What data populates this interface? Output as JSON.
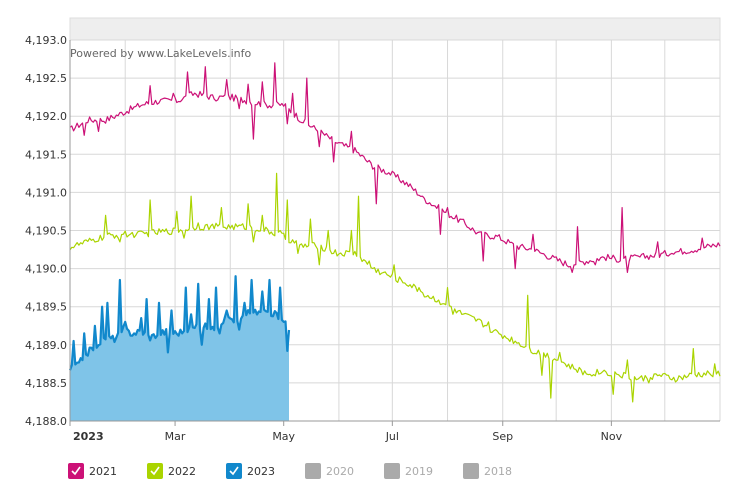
{
  "chart_data": {
    "type": "area",
    "watermark": "Powered by www.LakeLevels.info",
    "ylim": [
      4188.0,
      4193.0
    ],
    "y_ticks": [
      {
        "value": 4193.0,
        "label": "4,193.0"
      },
      {
        "value": 4192.5,
        "label": "4,192.5"
      },
      {
        "value": 4192.0,
        "label": "4,192.0"
      },
      {
        "value": 4191.5,
        "label": "4,191.5"
      },
      {
        "value": 4191.0,
        "label": "4,191.0"
      },
      {
        "value": 4190.5,
        "label": "4,190.5"
      },
      {
        "value": 4190.0,
        "label": "4,190.0"
      },
      {
        "value": 4189.5,
        "label": "4,189.5"
      },
      {
        "value": 4189.0,
        "label": "4,189.0"
      },
      {
        "value": 4188.5,
        "label": "4,188.5"
      },
      {
        "value": 4188.0,
        "label": "4,188.0"
      }
    ],
    "x_domain_days": [
      0,
      365
    ],
    "x_ticks": [
      {
        "day": 0,
        "label": "2023",
        "bold": true
      },
      {
        "day": 59,
        "label": "Mar",
        "bold": false
      },
      {
        "day": 120,
        "label": "May",
        "bold": false
      },
      {
        "day": 181,
        "label": "Jul",
        "bold": false
      },
      {
        "day": 243,
        "label": "Sep",
        "bold": false
      },
      {
        "day": 304,
        "label": "Nov",
        "bold": false
      }
    ],
    "x_gridline_days": [
      0,
      31,
      59,
      90,
      120,
      151,
      181,
      212,
      243,
      273,
      304,
      334
    ],
    "series": [
      {
        "name": "2021",
        "color": "#cc1177",
        "visible": true,
        "fill": false,
        "points": [
          [
            0,
            4191.82
          ],
          [
            10,
            4191.95
          ],
          [
            20,
            4191.95
          ],
          [
            30,
            4192.05
          ],
          [
            40,
            4192.15
          ],
          [
            50,
            4192.2
          ],
          [
            60,
            4192.2
          ],
          [
            70,
            4192.3
          ],
          [
            80,
            4192.25
          ],
          [
            90,
            4192.25
          ],
          [
            100,
            4192.2
          ],
          [
            110,
            4192.15
          ],
          [
            120,
            4192.15
          ],
          [
            130,
            4191.95
          ],
          [
            140,
            4191.8
          ],
          [
            150,
            4191.65
          ],
          [
            160,
            4191.55
          ],
          [
            170,
            4191.35
          ],
          [
            180,
            4191.25
          ],
          [
            190,
            4191.1
          ],
          [
            200,
            4190.9
          ],
          [
            210,
            4190.75
          ],
          [
            220,
            4190.62
          ],
          [
            230,
            4190.45
          ],
          [
            240,
            4190.42
          ],
          [
            250,
            4190.3
          ],
          [
            260,
            4190.25
          ],
          [
            270,
            4190.15
          ],
          [
            280,
            4190.05
          ],
          [
            290,
            4190.1
          ],
          [
            300,
            4190.15
          ],
          [
            310,
            4190.12
          ],
          [
            320,
            4190.15
          ],
          [
            330,
            4190.18
          ],
          [
            340,
            4190.22
          ],
          [
            350,
            4190.25
          ],
          [
            360,
            4190.3
          ],
          [
            365,
            4190.32
          ]
        ],
        "spikes": [
          [
            8,
            4191.75
          ],
          [
            16,
            4191.8
          ],
          [
            45,
            4192.4
          ],
          [
            58,
            4192.3
          ],
          [
            66,
            4192.58
          ],
          [
            76,
            4192.65
          ],
          [
            82,
            4192.2
          ],
          [
            88,
            4192.48
          ],
          [
            95,
            4192.1
          ],
          [
            100,
            4192.42
          ],
          [
            103,
            4191.7
          ],
          [
            108,
            4192.45
          ],
          [
            115,
            4192.7
          ],
          [
            122,
            4191.9
          ],
          [
            125,
            4192.3
          ],
          [
            133,
            4192.5
          ],
          [
            140,
            4191.6
          ],
          [
            148,
            4191.4
          ],
          [
            158,
            4191.8
          ],
          [
            172,
            4190.85
          ],
          [
            198,
            4190.95
          ],
          [
            208,
            4190.45
          ],
          [
            212,
            4190.8
          ],
          [
            232,
            4190.1
          ],
          [
            250,
            4190.0
          ],
          [
            260,
            4190.45
          ],
          [
            282,
            4189.95
          ],
          [
            285,
            4190.55
          ],
          [
            295,
            4190.05
          ],
          [
            310,
            4190.8
          ],
          [
            313,
            4189.95
          ],
          [
            330,
            4190.35
          ],
          [
            338,
            4190.2
          ],
          [
            355,
            4190.4
          ]
        ]
      },
      {
        "name": "2022",
        "color": "#aad400",
        "visible": true,
        "fill": false,
        "points": [
          [
            0,
            4190.28
          ],
          [
            10,
            4190.35
          ],
          [
            20,
            4190.42
          ],
          [
            30,
            4190.45
          ],
          [
            40,
            4190.45
          ],
          [
            50,
            4190.48
          ],
          [
            60,
            4190.5
          ],
          [
            70,
            4190.55
          ],
          [
            80,
            4190.55
          ],
          [
            90,
            4190.55
          ],
          [
            100,
            4190.55
          ],
          [
            110,
            4190.5
          ],
          [
            120,
            4190.42
          ],
          [
            130,
            4190.3
          ],
          [
            140,
            4190.3
          ],
          [
            150,
            4190.2
          ],
          [
            160,
            4190.2
          ],
          [
            170,
            4190.0
          ],
          [
            180,
            4189.9
          ],
          [
            190,
            4189.8
          ],
          [
            200,
            4189.65
          ],
          [
            210,
            4189.55
          ],
          [
            220,
            4189.4
          ],
          [
            230,
            4189.3
          ],
          [
            240,
            4189.15
          ],
          [
            250,
            4189.05
          ],
          [
            260,
            4188.92
          ],
          [
            270,
            4188.85
          ],
          [
            280,
            4188.72
          ],
          [
            290,
            4188.62
          ],
          [
            300,
            4188.65
          ],
          [
            310,
            4188.6
          ],
          [
            320,
            4188.55
          ],
          [
            330,
            4188.6
          ],
          [
            340,
            4188.55
          ],
          [
            350,
            4188.6
          ],
          [
            360,
            4188.62
          ],
          [
            365,
            4188.62
          ]
        ],
        "spikes": [
          [
            20,
            4190.7
          ],
          [
            28,
            4190.35
          ],
          [
            45,
            4190.9
          ],
          [
            60,
            4190.75
          ],
          [
            64,
            4190.4
          ],
          [
            68,
            4190.95
          ],
          [
            72,
            4190.6
          ],
          [
            85,
            4190.8
          ],
          [
            100,
            4190.85
          ],
          [
            103,
            4190.35
          ],
          [
            108,
            4190.7
          ],
          [
            116,
            4191.25
          ],
          [
            118,
            4190.5
          ],
          [
            122,
            4190.9
          ],
          [
            128,
            4190.2
          ],
          [
            135,
            4190.65
          ],
          [
            140,
            4190.05
          ],
          [
            145,
            4190.5
          ],
          [
            158,
            4190.5
          ],
          [
            162,
            4190.95
          ],
          [
            168,
            4190.1
          ],
          [
            182,
            4190.05
          ],
          [
            196,
            4189.75
          ],
          [
            212,
            4189.75
          ],
          [
            215,
            4189.4
          ],
          [
            235,
            4189.3
          ],
          [
            257,
            4189.65
          ],
          [
            265,
            4188.6
          ],
          [
            270,
            4188.3
          ],
          [
            275,
            4188.9
          ],
          [
            302,
            4188.6
          ],
          [
            305,
            4188.35
          ],
          [
            313,
            4188.8
          ],
          [
            316,
            4188.25
          ],
          [
            325,
            4188.5
          ],
          [
            350,
            4188.95
          ],
          [
            362,
            4188.75
          ]
        ]
      },
      {
        "name": "2023",
        "color": "#1188cc",
        "fill_color": "#7fc4e8",
        "visible": true,
        "fill": true,
        "points": [
          [
            0,
            4188.68
          ],
          [
            5,
            4188.75
          ],
          [
            10,
            4188.9
          ],
          [
            15,
            4189.0
          ],
          [
            20,
            4189.1
          ],
          [
            25,
            4189.08
          ],
          [
            30,
            4189.2
          ],
          [
            35,
            4189.15
          ],
          [
            40,
            4189.18
          ],
          [
            45,
            4189.1
          ],
          [
            50,
            4189.15
          ],
          [
            55,
            4189.18
          ],
          [
            60,
            4189.15
          ],
          [
            65,
            4189.2
          ],
          [
            70,
            4189.22
          ],
          [
            75,
            4189.25
          ],
          [
            80,
            4189.2
          ],
          [
            85,
            4189.3
          ],
          [
            90,
            4189.35
          ],
          [
            95,
            4189.3
          ],
          [
            100,
            4189.45
          ],
          [
            105,
            4189.42
          ],
          [
            110,
            4189.45
          ],
          [
            115,
            4189.4
          ],
          [
            120,
            4189.35
          ],
          [
            123,
            4189.2
          ]
        ],
        "spikes": [
          [
            2,
            4189.05
          ],
          [
            8,
            4189.15
          ],
          [
            14,
            4189.25
          ],
          [
            18,
            4189.5
          ],
          [
            21,
            4189.55
          ],
          [
            28,
            4189.85
          ],
          [
            31,
            4189.3
          ],
          [
            40,
            4189.35
          ],
          [
            43,
            4189.6
          ],
          [
            50,
            4189.55
          ],
          [
            55,
            4188.9
          ],
          [
            57,
            4189.45
          ],
          [
            65,
            4189.75
          ],
          [
            68,
            4189.4
          ],
          [
            72,
            4189.8
          ],
          [
            74,
            4189.0
          ],
          [
            78,
            4189.6
          ],
          [
            82,
            4189.75
          ],
          [
            84,
            4189.15
          ],
          [
            88,
            4189.45
          ],
          [
            93,
            4189.9
          ],
          [
            95,
            4189.2
          ],
          [
            98,
            4189.55
          ],
          [
            102,
            4189.85
          ],
          [
            108,
            4189.7
          ],
          [
            112,
            4189.85
          ],
          [
            118,
            4189.75
          ],
          [
            120,
            4189.3
          ],
          [
            122,
            4188.92
          ]
        ]
      },
      {
        "name": "2020",
        "color": "#aaaaaa",
        "visible": false
      },
      {
        "name": "2019",
        "color": "#aaaaaa",
        "visible": false
      },
      {
        "name": "2018",
        "color": "#aaaaaa",
        "visible": false
      }
    ]
  }
}
